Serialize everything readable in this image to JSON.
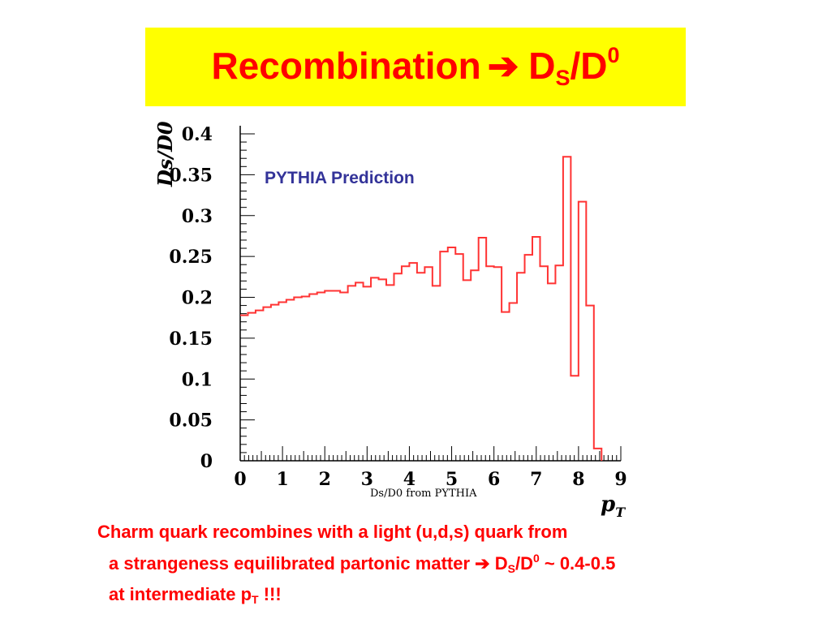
{
  "slide": {
    "title_main": "Recombination",
    "title_arrow": "➔",
    "title_d": "D",
    "title_sub": "S",
    "title_slash": "/D",
    "title_sup": "0",
    "caption_line1": "Charm quark recombines with a light (u,d,s) quark from",
    "caption_line2_a": "a strangeness equilibrated partonic matter",
    "caption_line2_arrow": "➔",
    "caption_line2_d": "D",
    "caption_line2_sub": "S",
    "caption_line2_slash": "/D",
    "caption_line2_sup": "0",
    "caption_line2_b": " ~ 0.4-0.5",
    "caption_line3_a": "at intermediate p",
    "caption_line3_sub": "T",
    "caption_line3_b": " !!!"
  },
  "colors": {
    "title_bg": "#ffff00",
    "title_text": "#ff0000",
    "histogram": "#ff3333",
    "annotation": "#333399",
    "axis": "#000000"
  },
  "chart_data": {
    "type": "line",
    "style": "histogram-step",
    "ylabel": "Ds/D0",
    "xlabel_main": "p",
    "xlabel_sub": "T",
    "axis_subtitle": "Ds/D0 from PYTHIA",
    "annotation": "PYTHIA Prediction",
    "xlim": [
      0,
      9
    ],
    "ylim": [
      0,
      0.4
    ],
    "xticks": [
      "0",
      "1",
      "2",
      "3",
      "4",
      "5",
      "6",
      "7",
      "8",
      "9"
    ],
    "yticks": [
      "0",
      "0.05",
      "0.1",
      "0.15",
      "0.2",
      "0.25",
      "0.3",
      "0.35",
      "0.4"
    ],
    "bin_width": 0.1818,
    "series": [
      {
        "values": [
          0.178,
          0.181,
          0.184,
          0.188,
          0.191,
          0.194,
          0.197,
          0.2,
          0.201,
          0.204,
          0.206,
          0.208,
          0.208,
          0.206,
          0.214,
          0.218,
          0.213,
          0.224,
          0.222,
          0.215,
          0.229,
          0.238,
          0.242,
          0.23,
          0.237,
          0.214,
          0.256,
          0.261,
          0.253,
          0.221,
          0.233,
          0.273,
          0.238,
          0.237,
          0.182,
          0.193,
          0.23,
          0.252,
          0.274,
          0.238,
          0.217,
          0.239,
          0.372,
          0.104,
          0.317,
          0.19,
          0.015
        ]
      }
    ]
  }
}
